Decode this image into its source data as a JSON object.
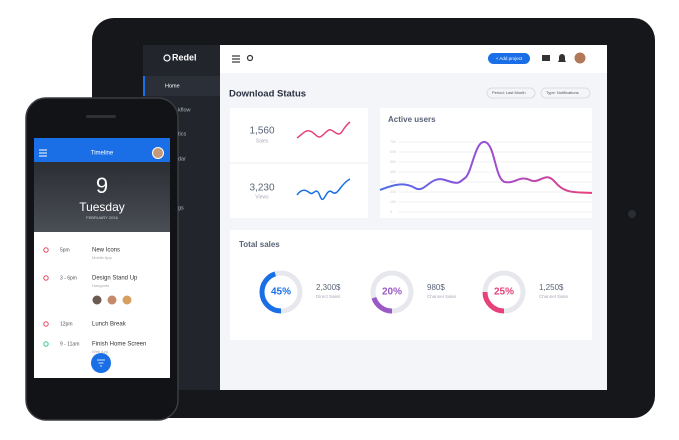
{
  "sidebar": {
    "brand": "Redel",
    "items": [
      "Home",
      "kflow",
      "tics",
      "dar",
      "gs"
    ]
  },
  "header": {
    "button": "+ Add project"
  },
  "dashboard": {
    "title": "Download Status",
    "filters": [
      "Period: Last Month",
      "Type: Notifications"
    ],
    "stats": [
      {
        "value": "1,560",
        "label": "Sales"
      },
      {
        "value": "3,230",
        "label": "Views"
      }
    ],
    "active_users": {
      "title": "Active users",
      "yticks": [
        700,
        600,
        500,
        400,
        300,
        200,
        100,
        0
      ]
    },
    "total_sales": {
      "title": "Total sales",
      "items": [
        {
          "percent": 45,
          "percent_label": "45%",
          "amount": "2,300$",
          "label": "Direct Sales",
          "color": "#1a6fe6"
        },
        {
          "percent": 20,
          "percent_label": "20%",
          "amount": "980$",
          "label": "Channel Sales",
          "color": "#9b59c6"
        },
        {
          "percent": 25,
          "percent_label": "25%",
          "amount": "1,250$",
          "label": "Channel Sales",
          "color": "#e8407a"
        }
      ]
    }
  },
  "phone": {
    "header": "Timeline",
    "day": "9",
    "weekday": "Tuesday",
    "month": "FEBRUARY 2016",
    "events": [
      {
        "time": "5pm",
        "title": "New Icons",
        "subtitle": "Mobile App",
        "color": "#e8455a"
      },
      {
        "time": "3 - 6pm",
        "title": "Design Stand Up",
        "subtitle": "Hangouts",
        "color": "#e8455a"
      },
      {
        "time": "12pm",
        "title": "Lunch Break",
        "subtitle": "",
        "color": "#e8455a"
      },
      {
        "time": "9 - 11am",
        "title": "Finish Home Screen",
        "subtitle": "Web App",
        "color": "#2ecc8a"
      }
    ]
  }
}
